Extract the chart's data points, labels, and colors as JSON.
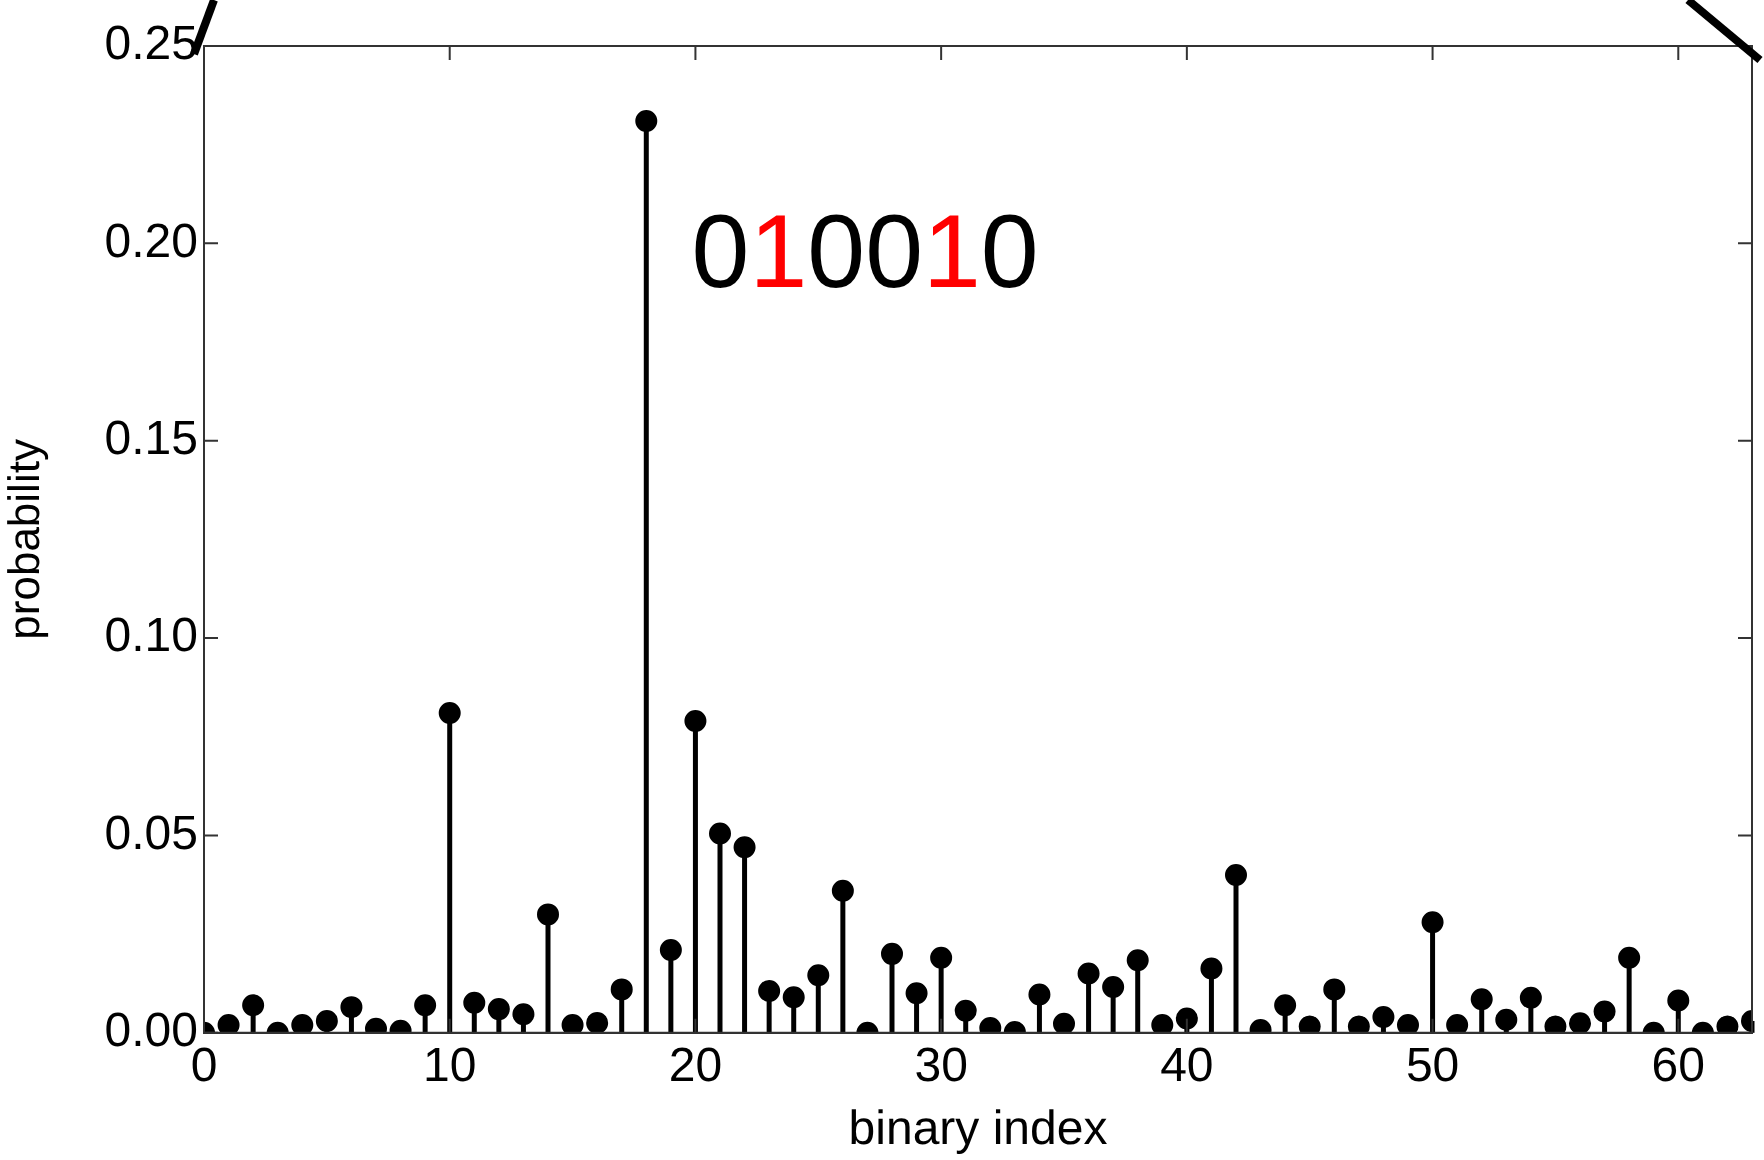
{
  "chart_data": {
    "type": "lollipop",
    "xlabel": "binary index",
    "ylabel": "probability",
    "annotations": [
      "010010"
    ],
    "x": [
      0,
      1,
      2,
      3,
      4,
      5,
      6,
      7,
      8,
      9,
      10,
      11,
      12,
      13,
      14,
      15,
      16,
      17,
      18,
      19,
      20,
      21,
      22,
      23,
      24,
      25,
      26,
      27,
      28,
      29,
      30,
      31,
      32,
      33,
      34,
      35,
      36,
      37,
      38,
      39,
      40,
      41,
      42,
      43,
      44,
      45,
      46,
      47,
      48,
      49,
      50,
      51,
      52,
      53,
      54,
      55,
      56,
      57,
      58,
      59,
      60,
      61,
      62,
      63
    ],
    "series": [
      {
        "color": "#000000",
        "values": [
          0.0,
          0.002,
          0.007,
          0.0,
          0.002,
          0.003,
          0.0065,
          0.001,
          0.0005,
          0.007,
          0.081,
          0.0076,
          0.006,
          0.0047,
          0.03,
          0.002,
          0.0025,
          0.011,
          0.231,
          0.021,
          0.079,
          0.0505,
          0.047,
          0.0106,
          0.009,
          0.0146,
          0.036,
          0.0,
          0.02,
          0.01,
          0.019,
          0.0056,
          0.0012,
          0.0002,
          0.0097,
          0.0023,
          0.015,
          0.0116,
          0.0184,
          0.002,
          0.0036,
          0.0163,
          0.04,
          0.0007,
          0.007,
          0.0016,
          0.011,
          0.0016,
          0.004,
          0.002,
          0.028,
          0.002,
          0.0085,
          0.0033,
          0.0089,
          0.0016,
          0.0024,
          0.0054,
          0.019,
          0.0,
          0.0082,
          0.0,
          0.0016,
          0.003
        ]
      }
    ],
    "xlim": [
      0,
      63
    ],
    "xticks": [
      0,
      10,
      20,
      30,
      40,
      50,
      60
    ],
    "ylim": [
      0,
      0.25
    ],
    "yticks": [
      {
        "value": 0,
        "label": "0.00"
      },
      {
        "value": 0.05,
        "label": "0.05"
      },
      {
        "value": 0.1,
        "label": "0.10"
      },
      {
        "value": 0.15,
        "label": "0.15"
      },
      {
        "value": 0.2,
        "label": "0.20"
      },
      {
        "value": 0.25,
        "label": "0.25"
      }
    ],
    "marker": "circle",
    "grid": false,
    "legend": false
  }
}
